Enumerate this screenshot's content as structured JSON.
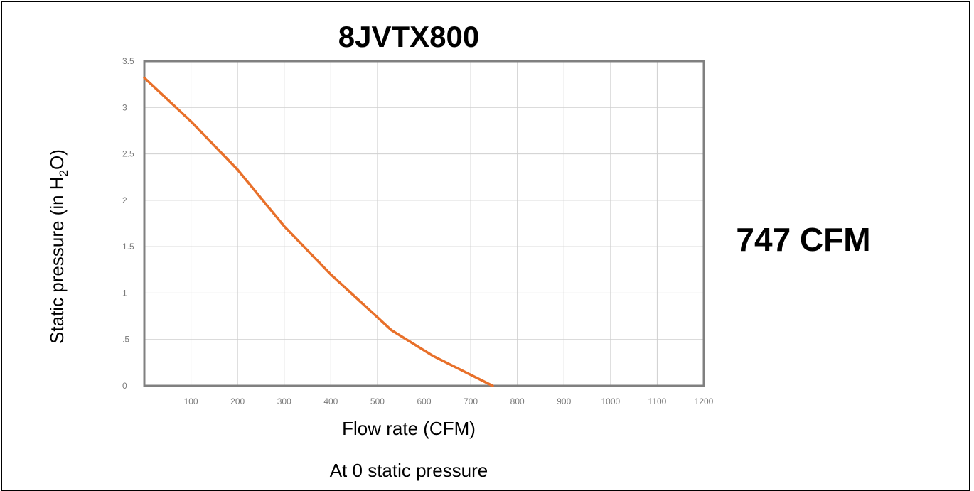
{
  "chart_data": {
    "type": "line",
    "title": "8JVTX800",
    "xlabel": "Flow rate (CFM)",
    "ylabel_prefix": "Static pressure (in H",
    "ylabel_sub": "2",
    "ylabel_suffix": "O)",
    "xlim": [
      0,
      1200
    ],
    "ylim": [
      0,
      3.5
    ],
    "x_ticks": [
      100,
      200,
      300,
      400,
      500,
      600,
      700,
      800,
      900,
      1000,
      1100,
      1200
    ],
    "x_tick_labels": [
      "100",
      "200",
      "300",
      "400",
      "500",
      "600",
      "700",
      "800",
      "900",
      "1000",
      "1100",
      "1200"
    ],
    "y_ticks": [
      0,
      0.5,
      1,
      1.5,
      2,
      2.5,
      3,
      3.5
    ],
    "y_tick_labels": [
      "0",
      ".5",
      "1",
      "1.5",
      "2",
      "2.5",
      "3",
      "3.5"
    ],
    "grid": true,
    "series": [
      {
        "color": "#e8702a",
        "x": [
          0,
          100,
          200,
          300,
          400,
          530,
          620,
          747
        ],
        "y": [
          3.32,
          2.85,
          2.33,
          1.72,
          1.2,
          0.6,
          0.32,
          0
        ]
      }
    ],
    "annotations": {
      "max_flow": "747 CFM",
      "note": "At 0 static pressure"
    }
  }
}
